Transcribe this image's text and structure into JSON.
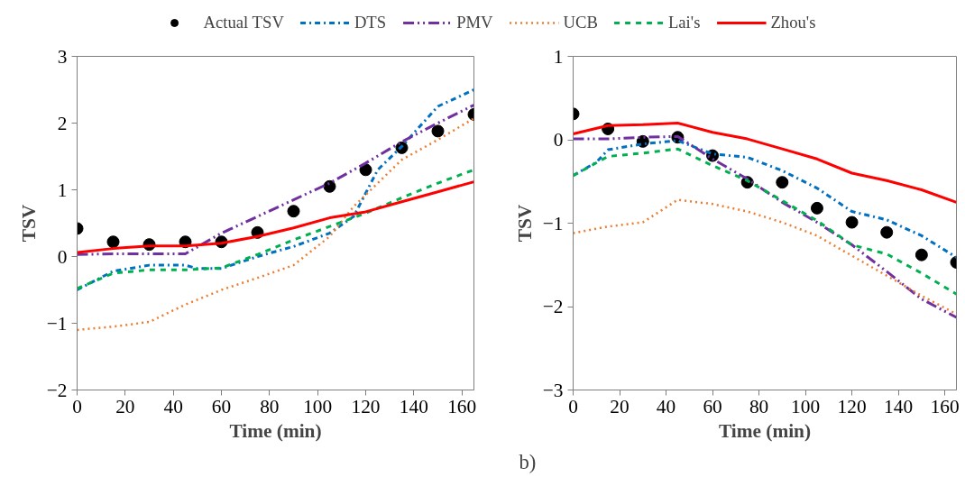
{
  "chart_data": [
    {
      "type": "line",
      "xlabel": "Time (min)",
      "ylabel": "TSV",
      "xlim": [
        0,
        165
      ],
      "xticks": [
        0,
        20,
        40,
        60,
        80,
        100,
        120,
        140,
        160
      ],
      "ylim": [
        -2,
        3
      ],
      "yticks": [
        -2,
        -1,
        0,
        1,
        2,
        3
      ],
      "grid": false,
      "legend": "top",
      "series": [
        {
          "name": "Actual TSV",
          "type": "scatter",
          "marker": "circle",
          "color": "#000000",
          "x": [
            0,
            15,
            30,
            45,
            60,
            75,
            90,
            105,
            120,
            135,
            150,
            165
          ],
          "values": [
            0.42,
            0.22,
            0.18,
            0.22,
            0.22,
            0.36,
            0.68,
            1.05,
            1.3,
            1.63,
            1.88,
            2.13
          ]
        },
        {
          "name": "DTS",
          "line_style": "dashdot",
          "color": "#0070c0",
          "x": [
            0,
            15,
            30,
            45,
            50,
            60,
            75,
            90,
            105,
            115,
            125,
            135,
            150,
            165
          ],
          "values": [
            -0.5,
            -0.22,
            -0.13,
            -0.13,
            -0.18,
            -0.18,
            0.0,
            0.15,
            0.35,
            0.6,
            1.3,
            1.65,
            2.25,
            2.5
          ]
        },
        {
          "name": "PMV",
          "line_style": "dashdotdot",
          "color": "#7030a0",
          "x": [
            0,
            15,
            30,
            45,
            60,
            75,
            90,
            105,
            120,
            135,
            150,
            165
          ],
          "values": [
            0.03,
            0.04,
            0.04,
            0.04,
            0.35,
            0.6,
            0.85,
            1.1,
            1.4,
            1.72,
            2.0,
            2.27
          ]
        },
        {
          "name": "UCB",
          "line_style": "dotted",
          "color": "#ed7d31",
          "x": [
            0,
            15,
            30,
            45,
            60,
            75,
            90,
            105,
            115,
            125,
            135,
            150,
            165
          ],
          "values": [
            -1.1,
            -1.05,
            -0.98,
            -0.72,
            -0.5,
            -0.32,
            -0.13,
            0.3,
            0.75,
            1.1,
            1.45,
            1.75,
            2.07
          ]
        },
        {
          "name": "Lai's",
          "line_style": "dashed",
          "color": "#00b050",
          "x": [
            0,
            15,
            30,
            45,
            60,
            75,
            90,
            105,
            120,
            135,
            150,
            165
          ],
          "values": [
            -0.48,
            -0.25,
            -0.2,
            -0.2,
            -0.17,
            0.03,
            0.25,
            0.45,
            0.65,
            0.88,
            1.1,
            1.3
          ]
        },
        {
          "name": "Zhou's",
          "line_style": "solid",
          "color": "#ff0000",
          "x": [
            0,
            15,
            30,
            45,
            60,
            75,
            90,
            105,
            120,
            135,
            150,
            165
          ],
          "values": [
            0.06,
            0.12,
            0.16,
            0.16,
            0.2,
            0.3,
            0.43,
            0.58,
            0.67,
            0.82,
            0.97,
            1.12
          ]
        }
      ]
    },
    {
      "type": "line",
      "xlabel": "Time (min)",
      "ylabel": "TSV",
      "xlim": [
        0,
        165
      ],
      "xticks": [
        0,
        20,
        40,
        60,
        80,
        100,
        120,
        140,
        160
      ],
      "ylim": [
        -3,
        1
      ],
      "yticks": [
        -3,
        -2,
        -1,
        0,
        1
      ],
      "grid": false,
      "annotations": [
        "b)"
      ],
      "series": [
        {
          "type": "scatter",
          "marker": "circle",
          "color": "#000000",
          "x": [
            0,
            15,
            30,
            45,
            60,
            75,
            90,
            105,
            120,
            135,
            150,
            165
          ],
          "values": [
            0.31,
            0.13,
            -0.02,
            0.03,
            -0.19,
            -0.51,
            -0.51,
            -0.82,
            -0.99,
            -1.11,
            -1.38,
            -1.47
          ]
        },
        {
          "line_style": "dashdot",
          "color": "#0070c0",
          "x": [
            0,
            10,
            15,
            30,
            45,
            60,
            75,
            90,
            105,
            120,
            135,
            150,
            165
          ],
          "values": [
            -0.43,
            -0.27,
            -0.12,
            -0.05,
            -0.01,
            -0.17,
            -0.21,
            -0.37,
            -0.58,
            -0.86,
            -0.96,
            -1.15,
            -1.41
          ]
        },
        {
          "line_style": "dashdotdot",
          "color": "#7030a0",
          "x": [
            0,
            15,
            30,
            45,
            60,
            75,
            90,
            105,
            120,
            135,
            150,
            165
          ],
          "values": [
            0.01,
            0.01,
            0.03,
            0.04,
            -0.23,
            -0.47,
            -0.75,
            -0.99,
            -1.26,
            -1.58,
            -1.91,
            -2.13
          ]
        },
        {
          "line_style": "dotted",
          "color": "#ed7d31",
          "x": [
            0,
            15,
            30,
            45,
            60,
            75,
            90,
            105,
            120,
            135,
            150,
            165
          ],
          "values": [
            -1.12,
            -1.04,
            -0.99,
            -0.72,
            -0.77,
            -0.86,
            -0.99,
            -1.15,
            -1.39,
            -1.63,
            -1.87,
            -2.09
          ]
        },
        {
          "line_style": "dashed",
          "color": "#00b050",
          "x": [
            0,
            15,
            30,
            45,
            60,
            75,
            90,
            105,
            120,
            135,
            150,
            165
          ],
          "values": [
            -0.43,
            -0.2,
            -0.16,
            -0.11,
            -0.31,
            -0.49,
            -0.73,
            -0.97,
            -1.26,
            -1.37,
            -1.6,
            -1.85
          ]
        },
        {
          "line_style": "solid",
          "color": "#ff0000",
          "x": [
            0,
            15,
            30,
            45,
            60,
            75,
            90,
            105,
            120,
            135,
            150,
            165
          ],
          "values": [
            0.07,
            0.17,
            0.18,
            0.2,
            0.09,
            0.01,
            -0.11,
            -0.23,
            -0.4,
            -0.49,
            -0.6,
            -0.75
          ]
        }
      ]
    }
  ]
}
